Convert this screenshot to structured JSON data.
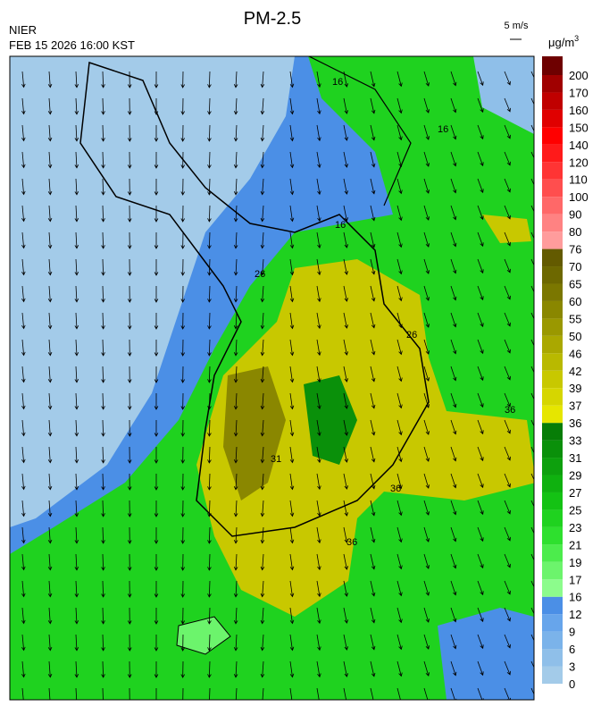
{
  "header": {
    "title": "PM-2.5",
    "source": "NIER",
    "time": "FEB 15 2026 16:00 KST",
    "wind_scale": "5 m/s",
    "unit": "μg/m",
    "unit_sup": "3"
  },
  "colorbar": {
    "labels": [
      "0",
      "3",
      "6",
      "9",
      "12",
      "16",
      "17",
      "19",
      "21",
      "23",
      "25",
      "27",
      "29",
      "31",
      "33",
      "36",
      "37",
      "39",
      "42",
      "46",
      "50",
      "55",
      "60",
      "65",
      "70",
      "76",
      "80",
      "90",
      "100",
      "110",
      "120",
      "140",
      "150",
      "160",
      "170",
      "200"
    ],
    "colors": [
      "#a3cbe9",
      "#8fbfe9",
      "#7bb3ea",
      "#67a5eb",
      "#4b8fe6",
      "#8cfc8c",
      "#6cf46c",
      "#4cec4c",
      "#2ee02e",
      "#1fd21f",
      "#14c214",
      "#0fb10f",
      "#0da00d",
      "#0a900a",
      "#077d07",
      "#e6e600",
      "#d6d600",
      "#c8c800",
      "#b9b900",
      "#aaa800",
      "#9a9800",
      "#8a8700",
      "#7b7700",
      "#6d6800",
      "#635a00",
      "#ff9c9c",
      "#ff8282",
      "#ff6868",
      "#ff4e4e",
      "#ff3434",
      "#ff1a1a",
      "#ff0000",
      "#e00000",
      "#c00000",
      "#a00000",
      "#6e0000"
    ]
  },
  "contours": {
    "labels": [
      "16",
      "16",
      "16",
      "26",
      "26",
      "36",
      "36",
      "31",
      "36"
    ]
  }
}
